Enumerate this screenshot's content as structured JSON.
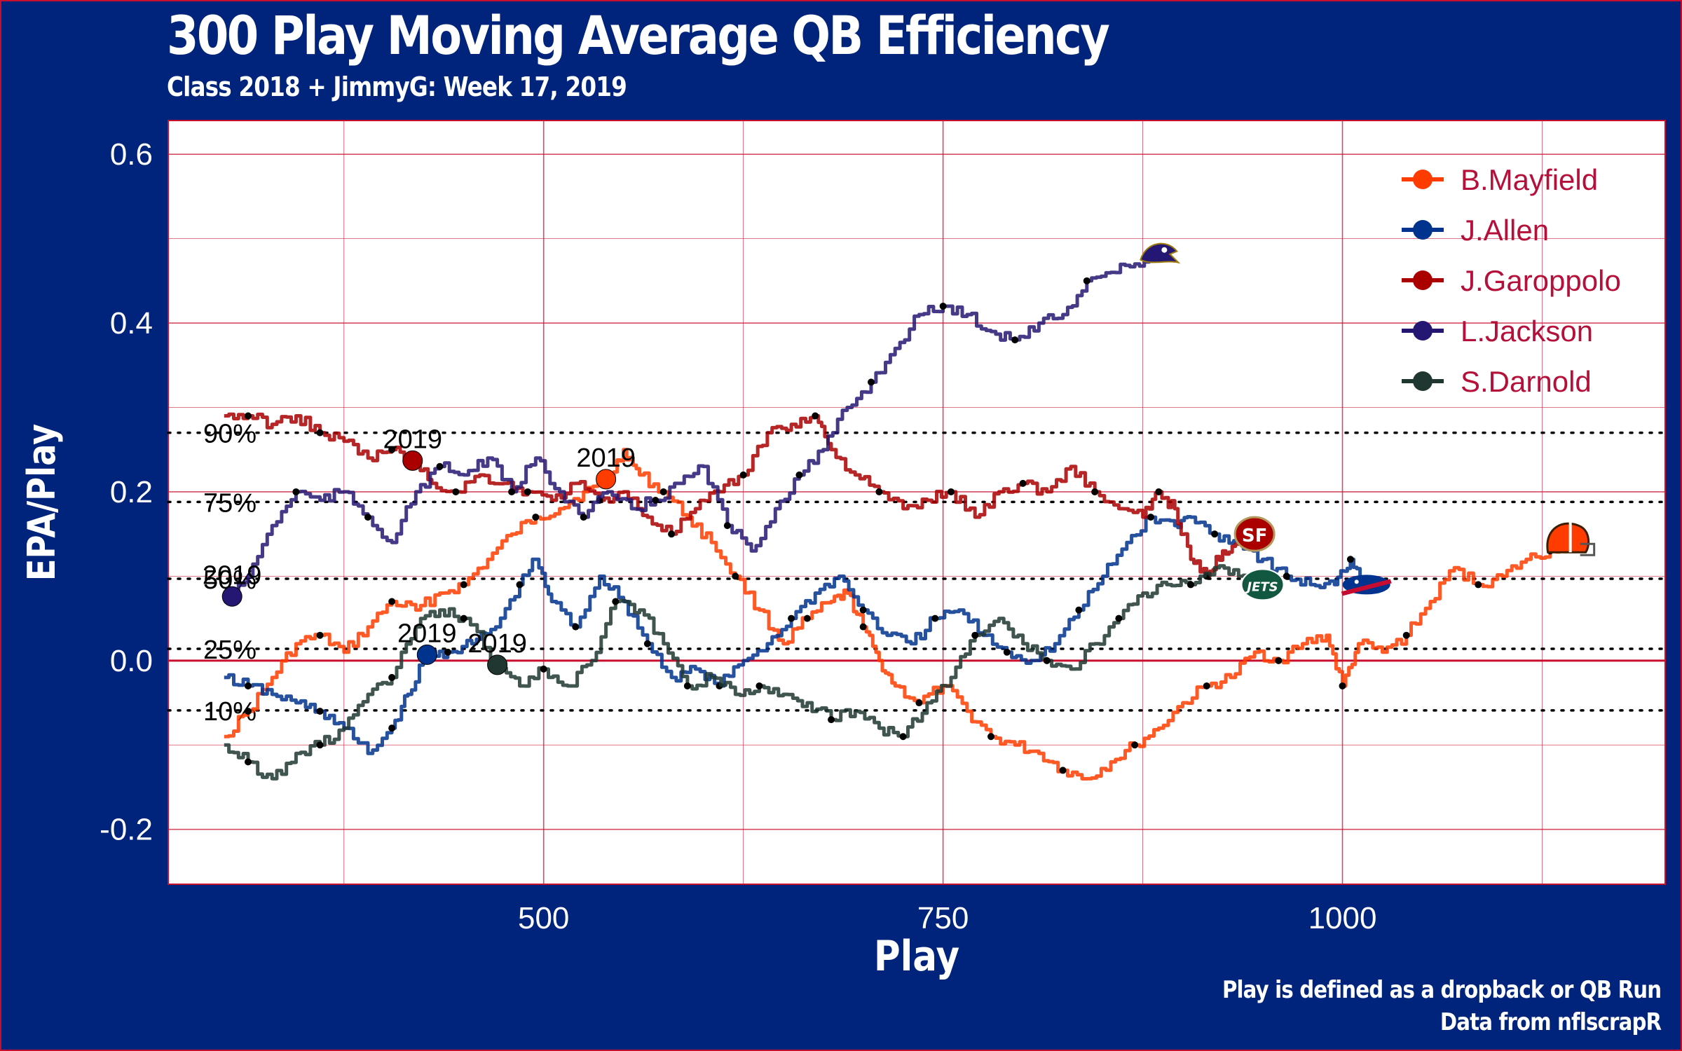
{
  "title": "300 Play Moving Average QB Efficiency",
  "subtitle": "Class 2018 + JimmyG: Week 17, 2019",
  "caption": {
    "line1": "Play is defined as a dropback or QB Run",
    "line2": "Data from nflscrapR"
  },
  "colors": {
    "background": "#00237b",
    "panel": "#ffffff",
    "grid": "#c8102e",
    "accent": "#c8102e"
  },
  "chart_data": {
    "type": "line",
    "title": "300 Play Moving Average QB Efficiency",
    "subtitle": "Class 2018 + JimmyG: Week 17, 2019",
    "xlabel": "Play",
    "ylabel": "EPA/Play",
    "xlim": [
      265,
      1202
    ],
    "ylim": [
      -0.265,
      0.64
    ],
    "xticks": [
      500,
      750,
      1000
    ],
    "yticks": [
      -0.2,
      0.0,
      0.2,
      0.4,
      0.6
    ],
    "ytick_labels": [
      "-0.2",
      "0.0",
      "0.2",
      "0.4",
      "0.6"
    ],
    "grid": true,
    "legend_position": "top-right",
    "reference_lines": [
      {
        "label": "90%",
        "y": 0.27
      },
      {
        "label": "75%",
        "y": 0.188
      },
      {
        "label": "50%",
        "y": 0.097
      },
      {
        "label": "25%",
        "y": 0.014
      },
      {
        "label": "10%",
        "y": -0.059
      }
    ],
    "zero_line": 0.0,
    "series": [
      {
        "name": "B.Mayfield",
        "color": "#ff3c00",
        "end_icon": "browns-helmet-icon",
        "season_marker": {
          "label": "2019",
          "x": 539,
          "y": 0.215
        },
        "x": [
          300,
          315,
          330,
          345,
          360,
          375,
          390,
          405,
          420,
          435,
          450,
          465,
          480,
          495,
          510,
          525,
          540,
          550,
          560,
          575,
          590,
          605,
          620,
          635,
          650,
          665,
          680,
          690,
          700,
          710,
          720,
          735,
          750,
          765,
          780,
          795,
          810,
          825,
          840,
          855,
          870,
          885,
          900,
          915,
          930,
          945,
          960,
          975,
          990,
          1000,
          1010,
          1025,
          1040,
          1055,
          1070,
          1085,
          1100,
          1115,
          1130,
          1140
        ],
        "y": [
          -0.09,
          -0.06,
          -0.02,
          0.02,
          0.03,
          0.01,
          0.04,
          0.07,
          0.06,
          0.08,
          0.09,
          0.12,
          0.15,
          0.17,
          0.18,
          0.2,
          0.21,
          0.25,
          0.22,
          0.2,
          0.17,
          0.14,
          0.1,
          0.06,
          0.02,
          0.05,
          0.07,
          0.08,
          0.04,
          0.0,
          -0.03,
          -0.05,
          -0.03,
          -0.06,
          -0.09,
          -0.1,
          -0.11,
          -0.13,
          -0.14,
          -0.12,
          -0.1,
          -0.08,
          -0.05,
          -0.03,
          -0.02,
          0.01,
          0.0,
          0.02,
          0.03,
          -0.03,
          0.02,
          0.01,
          0.03,
          0.07,
          0.11,
          0.09,
          0.1,
          0.12,
          0.13,
          0.14
        ]
      },
      {
        "name": "J.Allen",
        "color": "#00338d",
        "end_icon": "bills-logo-icon",
        "season_marker": {
          "label": "2019",
          "x": 427,
          "y": 0.007
        },
        "x": [
          300,
          315,
          330,
          345,
          360,
          375,
          390,
          405,
          415,
          427,
          440,
          455,
          470,
          485,
          495,
          505,
          520,
          535,
          550,
          565,
          580,
          595,
          610,
          625,
          640,
          655,
          670,
          685,
          700,
          715,
          730,
          745,
          760,
          775,
          790,
          805,
          820,
          835,
          850,
          865,
          880,
          895,
          905,
          920,
          935,
          950,
          965,
          980,
          995,
          1005,
          1015
        ],
        "y": [
          -0.02,
          -0.03,
          -0.04,
          -0.05,
          -0.06,
          -0.08,
          -0.11,
          -0.08,
          -0.04,
          0.007,
          0.01,
          0.02,
          0.04,
          0.09,
          0.12,
          0.07,
          0.04,
          0.1,
          0.07,
          0.02,
          -0.02,
          -0.01,
          -0.03,
          0.0,
          0.02,
          0.05,
          0.08,
          0.1,
          0.06,
          0.03,
          0.02,
          0.05,
          0.06,
          0.03,
          0.01,
          0.0,
          0.02,
          0.06,
          0.1,
          0.14,
          0.17,
          0.16,
          0.17,
          0.15,
          0.14,
          0.12,
          0.1,
          0.09,
          0.09,
          0.12,
          0.09
        ]
      },
      {
        "name": "J.Garoppolo",
        "color": "#aa0000",
        "end_icon": "49ers-logo-icon",
        "season_marker": {
          "label": "2019",
          "x": 418,
          "y": 0.237
        },
        "x": [
          300,
          315,
          330,
          345,
          360,
          375,
          390,
          405,
          418,
          430,
          445,
          460,
          475,
          490,
          505,
          520,
          535,
          550,
          565,
          580,
          595,
          610,
          625,
          640,
          655,
          670,
          680,
          695,
          710,
          725,
          740,
          755,
          770,
          785,
          800,
          815,
          830,
          845,
          860,
          875,
          885,
          895,
          905,
          915,
          925,
          935,
          945
        ],
        "y": [
          0.29,
          0.29,
          0.28,
          0.29,
          0.27,
          0.26,
          0.24,
          0.25,
          0.237,
          0.21,
          0.2,
          0.22,
          0.21,
          0.2,
          0.19,
          0.21,
          0.19,
          0.2,
          0.17,
          0.15,
          0.18,
          0.2,
          0.22,
          0.27,
          0.28,
          0.29,
          0.25,
          0.22,
          0.2,
          0.18,
          0.19,
          0.2,
          0.17,
          0.2,
          0.21,
          0.2,
          0.23,
          0.2,
          0.18,
          0.17,
          0.2,
          0.18,
          0.12,
          0.1,
          0.13,
          0.14,
          0.15
        ]
      },
      {
        "name": "L.Jackson",
        "color": "#241773",
        "end_icon": "ravens-logo-icon",
        "season_marker": {
          "label": "2019",
          "x": 305,
          "y": 0.076
        },
        "x": [
          300,
          305,
          315,
          330,
          345,
          360,
          375,
          390,
          405,
          420,
          435,
          450,
          465,
          480,
          495,
          510,
          525,
          540,
          555,
          570,
          585,
          600,
          615,
          630,
          645,
          660,
          675,
          690,
          705,
          720,
          735,
          750,
          765,
          780,
          795,
          810,
          825,
          840,
          855,
          870,
          885
        ],
        "y": [
          0.07,
          0.076,
          0.1,
          0.16,
          0.2,
          0.19,
          0.2,
          0.17,
          0.14,
          0.2,
          0.23,
          0.22,
          0.24,
          0.2,
          0.24,
          0.2,
          0.17,
          0.2,
          0.18,
          0.19,
          0.21,
          0.23,
          0.16,
          0.13,
          0.18,
          0.22,
          0.25,
          0.3,
          0.33,
          0.37,
          0.41,
          0.42,
          0.41,
          0.39,
          0.38,
          0.4,
          0.41,
          0.45,
          0.46,
          0.47,
          0.48
        ]
      },
      {
        "name": "S.Darnold",
        "color": "#203731",
        "end_icon": "jets-logo-icon",
        "season_marker": {
          "label": "2019",
          "x": 471,
          "y": -0.005
        },
        "x": [
          300,
          315,
          330,
          345,
          360,
          375,
          390,
          405,
          420,
          435,
          450,
          471,
          485,
          500,
          515,
          530,
          545,
          560,
          575,
          590,
          605,
          620,
          635,
          650,
          665,
          680,
          695,
          710,
          725,
          740,
          755,
          770,
          785,
          800,
          815,
          830,
          845,
          860,
          875,
          890,
          905,
          920,
          935,
          950
        ],
        "y": [
          -0.1,
          -0.12,
          -0.14,
          -0.11,
          -0.1,
          -0.08,
          -0.04,
          -0.02,
          0.04,
          0.06,
          0.05,
          -0.005,
          -0.03,
          -0.01,
          -0.03,
          0.0,
          0.07,
          0.06,
          0.02,
          -0.03,
          -0.02,
          -0.04,
          -0.03,
          -0.04,
          -0.05,
          -0.07,
          -0.06,
          -0.08,
          -0.09,
          -0.05,
          -0.02,
          0.03,
          0.05,
          0.02,
          0.0,
          -0.01,
          0.02,
          0.05,
          0.08,
          0.09,
          0.09,
          0.11,
          0.1,
          0.09
        ]
      }
    ]
  }
}
